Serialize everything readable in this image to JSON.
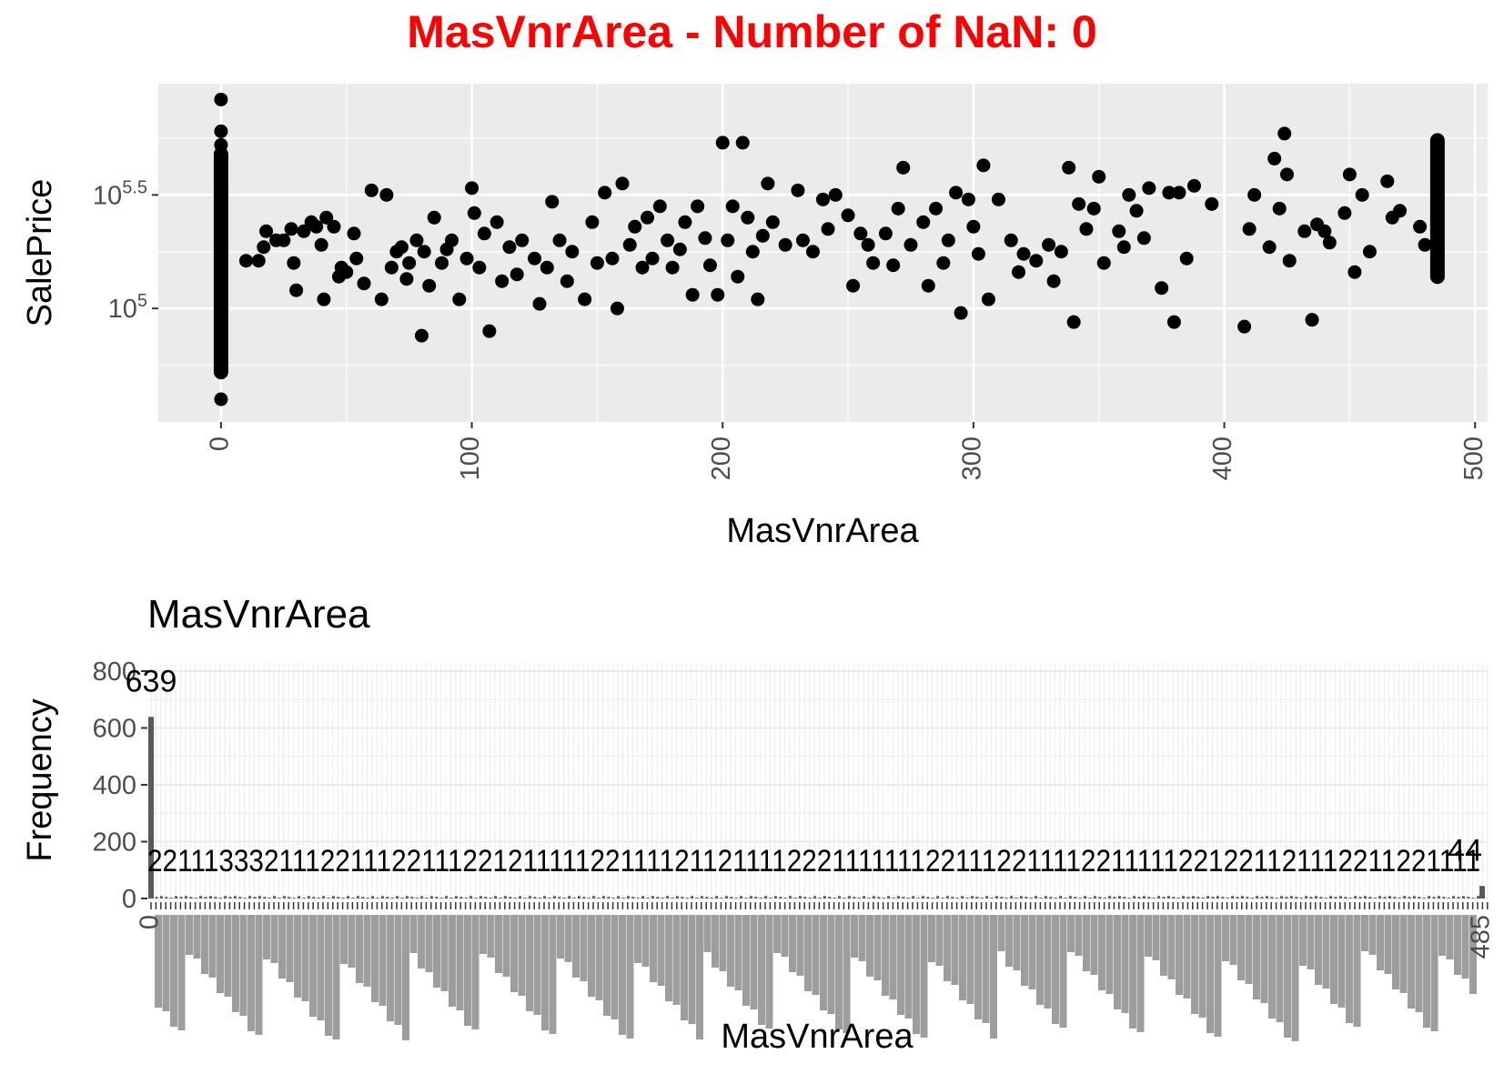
{
  "title": "MasVnrArea - Number of NaN: 0",
  "colors": {
    "title": "#ff0000",
    "panel_bg": "#ebebeb",
    "grid": "#ffffff",
    "point": "#000000",
    "bar": "#595959",
    "tick_text": "#4d4d4d"
  },
  "chart_data": [
    {
      "type": "scatter",
      "xlabel": "MasVnrArea",
      "ylabel": "SalePrice",
      "xlim": [
        -25,
        505
      ],
      "ylim": [
        4.5,
        5.99
      ],
      "y_scale": "log10",
      "x_ticks": [
        0,
        100,
        200,
        300,
        400,
        500
      ],
      "y_ticks": [
        {
          "value": 5.0,
          "base": "10",
          "exp": "5"
        },
        {
          "value": 5.5,
          "base": "10",
          "exp": "5.5"
        }
      ],
      "grid": true,
      "x_tick_rotation": -90,
      "points": [
        [
          0,
          5.92
        ],
        [
          0,
          5.78
        ],
        [
          0,
          5.72
        ],
        [
          0,
          5.62
        ],
        [
          0,
          5.55
        ],
        [
          0,
          5.48
        ],
        [
          0,
          5.42
        ],
        [
          0,
          5.35
        ],
        [
          0,
          5.28
        ],
        [
          0,
          5.2
        ],
        [
          0,
          5.12
        ],
        [
          0,
          5.05
        ],
        [
          0,
          4.98
        ],
        [
          0,
          4.9
        ],
        [
          0,
          4.82
        ],
        [
          0,
          4.74
        ],
        [
          0,
          4.6
        ],
        [
          10,
          5.21
        ],
        [
          15,
          5.21
        ],
        [
          17,
          5.27
        ],
        [
          18,
          5.34
        ],
        [
          22,
          5.3
        ],
        [
          25,
          5.3
        ],
        [
          28,
          5.35
        ],
        [
          29,
          5.2
        ],
        [
          30,
          5.08
        ],
        [
          33,
          5.34
        ],
        [
          36,
          5.38
        ],
        [
          38,
          5.36
        ],
        [
          40,
          5.28
        ],
        [
          41,
          5.04
        ],
        [
          42,
          5.4
        ],
        [
          45,
          5.36
        ],
        [
          47,
          5.14
        ],
        [
          48,
          5.18
        ],
        [
          50,
          5.16
        ],
        [
          53,
          5.33
        ],
        [
          54,
          5.22
        ],
        [
          57,
          5.11
        ],
        [
          60,
          5.52
        ],
        [
          64,
          5.04
        ],
        [
          66,
          5.5
        ],
        [
          68,
          5.18
        ],
        [
          70,
          5.25
        ],
        [
          72,
          5.27
        ],
        [
          74,
          5.13
        ],
        [
          75,
          5.2
        ],
        [
          78,
          5.3
        ],
        [
          80,
          4.88
        ],
        [
          81,
          5.25
        ],
        [
          83,
          5.1
        ],
        [
          85,
          5.4
        ],
        [
          88,
          5.2
        ],
        [
          90,
          5.26
        ],
        [
          92,
          5.3
        ],
        [
          95,
          5.04
        ],
        [
          98,
          5.22
        ],
        [
          100,
          5.53
        ],
        [
          101,
          5.42
        ],
        [
          103,
          5.18
        ],
        [
          105,
          5.33
        ],
        [
          107,
          4.9
        ],
        [
          110,
          5.38
        ],
        [
          112,
          5.12
        ],
        [
          115,
          5.27
        ],
        [
          118,
          5.15
        ],
        [
          120,
          5.3
        ],
        [
          125,
          5.22
        ],
        [
          127,
          5.02
        ],
        [
          130,
          5.18
        ],
        [
          132,
          5.47
        ],
        [
          135,
          5.3
        ],
        [
          138,
          5.12
        ],
        [
          140,
          5.25
        ],
        [
          145,
          5.04
        ],
        [
          148,
          5.38
        ],
        [
          150,
          5.2
        ],
        [
          153,
          5.51
        ],
        [
          156,
          5.22
        ],
        [
          158,
          5.0
        ],
        [
          160,
          5.55
        ],
        [
          163,
          5.28
        ],
        [
          165,
          5.36
        ],
        [
          168,
          5.18
        ],
        [
          170,
          5.4
        ],
        [
          172,
          5.22
        ],
        [
          175,
          5.45
        ],
        [
          178,
          5.3
        ],
        [
          180,
          5.18
        ],
        [
          183,
          5.26
        ],
        [
          185,
          5.38
        ],
        [
          188,
          5.06
        ],
        [
          190,
          5.45
        ],
        [
          193,
          5.31
        ],
        [
          195,
          5.19
        ],
        [
          198,
          5.06
        ],
        [
          200,
          5.73
        ],
        [
          202,
          5.3
        ],
        [
          204,
          5.45
        ],
        [
          206,
          5.14
        ],
        [
          208,
          5.73
        ],
        [
          210,
          5.4
        ],
        [
          212,
          5.25
        ],
        [
          214,
          5.04
        ],
        [
          216,
          5.32
        ],
        [
          218,
          5.55
        ],
        [
          220,
          5.38
        ],
        [
          225,
          5.28
        ],
        [
          230,
          5.52
        ],
        [
          232,
          5.3
        ],
        [
          236,
          5.25
        ],
        [
          240,
          5.48
        ],
        [
          242,
          5.35
        ],
        [
          245,
          5.5
        ],
        [
          250,
          5.41
        ],
        [
          252,
          5.1
        ],
        [
          255,
          5.33
        ],
        [
          258,
          5.28
        ],
        [
          260,
          5.2
        ],
        [
          265,
          5.33
        ],
        [
          268,
          5.19
        ],
        [
          270,
          5.44
        ],
        [
          272,
          5.62
        ],
        [
          275,
          5.28
        ],
        [
          280,
          5.38
        ],
        [
          282,
          5.1
        ],
        [
          285,
          5.44
        ],
        [
          288,
          5.2
        ],
        [
          290,
          5.3
        ],
        [
          293,
          5.51
        ],
        [
          295,
          4.98
        ],
        [
          298,
          5.48
        ],
        [
          300,
          5.36
        ],
        [
          302,
          5.24
        ],
        [
          304,
          5.63
        ],
        [
          306,
          5.04
        ],
        [
          310,
          5.48
        ],
        [
          315,
          5.3
        ],
        [
          318,
          5.16
        ],
        [
          320,
          5.24
        ],
        [
          325,
          5.21
        ],
        [
          330,
          5.28
        ],
        [
          332,
          5.12
        ],
        [
          335,
          5.25
        ],
        [
          338,
          5.62
        ],
        [
          340,
          4.94
        ],
        [
          342,
          5.46
        ],
        [
          345,
          5.35
        ],
        [
          348,
          5.44
        ],
        [
          350,
          5.58
        ],
        [
          352,
          5.2
        ],
        [
          358,
          5.34
        ],
        [
          360,
          5.27
        ],
        [
          362,
          5.5
        ],
        [
          365,
          5.43
        ],
        [
          368,
          5.31
        ],
        [
          370,
          5.53
        ],
        [
          375,
          5.09
        ],
        [
          378,
          5.51
        ],
        [
          380,
          4.94
        ],
        [
          382,
          5.51
        ],
        [
          385,
          5.22
        ],
        [
          388,
          5.54
        ],
        [
          395,
          5.46
        ],
        [
          408,
          4.92
        ],
        [
          410,
          5.35
        ],
        [
          412,
          5.5
        ],
        [
          418,
          5.27
        ],
        [
          420,
          5.66
        ],
        [
          422,
          5.44
        ],
        [
          424,
          5.77
        ],
        [
          425,
          5.59
        ],
        [
          426,
          5.21
        ],
        [
          432,
          5.34
        ],
        [
          435,
          4.95
        ],
        [
          437,
          5.37
        ],
        [
          440,
          5.34
        ],
        [
          442,
          5.29
        ],
        [
          448,
          5.42
        ],
        [
          450,
          5.59
        ],
        [
          452,
          5.16
        ],
        [
          455,
          5.5
        ],
        [
          458,
          5.25
        ],
        [
          465,
          5.56
        ],
        [
          467,
          5.4
        ],
        [
          470,
          5.43
        ],
        [
          478,
          5.36
        ],
        [
          480,
          5.28
        ],
        [
          485,
          5.14
        ],
        [
          485,
          5.22
        ],
        [
          485,
          5.3
        ],
        [
          485,
          5.38
        ],
        [
          485,
          5.46
        ],
        [
          485,
          5.54
        ],
        [
          485,
          5.62
        ],
        [
          485,
          5.7
        ],
        [
          485,
          5.74
        ]
      ],
      "vertical_clusters": [
        {
          "x": 0,
          "y_from": 4.72,
          "y_to": 5.68
        },
        {
          "x": 485,
          "y_from": 5.14,
          "y_to": 5.74
        }
      ]
    },
    {
      "type": "bar",
      "title": "MasVnrArea",
      "xlabel": "MasVnrArea",
      "ylabel": "Frequency",
      "ylim": [
        0,
        800
      ],
      "y_ticks": [
        0,
        200,
        400,
        600,
        800
      ],
      "grid": true,
      "bars": [
        {
          "category": "0",
          "value": 639,
          "label": "639"
        },
        {
          "category": "485",
          "value": 44,
          "label": "44"
        }
      ],
      "small_bar_label_text": "2211133321112211122111221211111221111211211112221111111221112211112211111221221121112211221111",
      "x_tick_rotation": -90
    }
  ]
}
